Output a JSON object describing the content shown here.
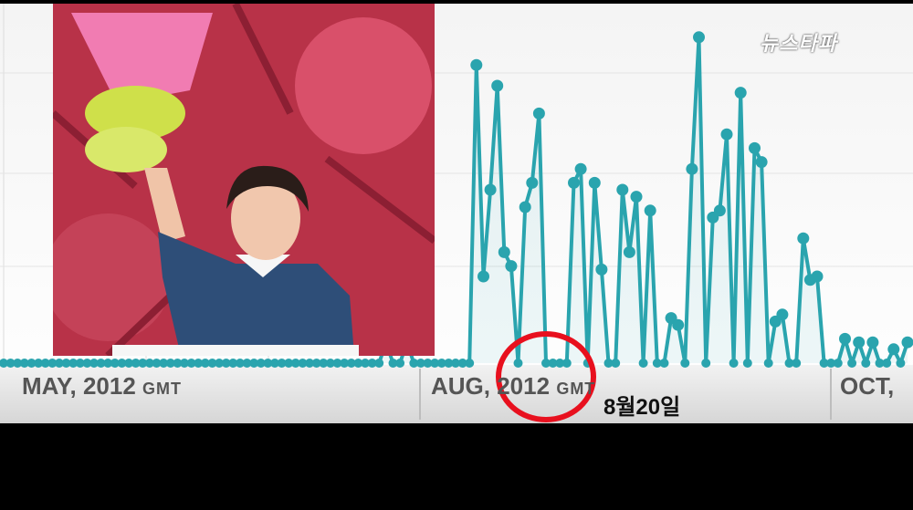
{
  "logo": {
    "text": "뉴스타파"
  },
  "annotation": {
    "text": "8월20일"
  },
  "chart_data": {
    "type": "line",
    "x_ticks": [
      {
        "main": "MAY, 2012",
        "suffix": "GMT"
      },
      {
        "main": "AUG, 2012",
        "suffix": "GMT"
      },
      {
        "main": "OCT,",
        "suffix": ""
      }
    ],
    "highlight": {
      "x_label": "8월20일",
      "color": "#e8101e"
    },
    "series_color": "#2aa4ae",
    "ylim": [
      0,
      100
    ],
    "grid": true,
    "values": [
      0,
      0,
      0,
      0,
      0,
      0,
      0,
      0,
      0,
      0,
      0,
      0,
      0,
      0,
      0,
      0,
      0,
      0,
      0,
      0,
      0,
      0,
      0,
      0,
      0,
      0,
      0,
      0,
      0,
      0,
      0,
      0,
      0,
      0,
      0,
      0,
      0,
      0,
      0,
      0,
      0,
      0,
      0,
      0,
      0,
      0,
      0,
      0,
      0,
      0,
      0,
      0,
      0,
      0,
      0,
      6,
      0,
      0,
      6,
      0,
      0,
      0,
      0,
      0,
      0,
      0,
      0,
      0,
      86,
      25,
      50,
      80,
      32,
      28,
      0,
      45,
      52,
      72,
      0,
      0,
      0,
      0,
      52,
      56,
      0,
      52,
      27,
      0,
      0,
      50,
      32,
      48,
      0,
      44,
      0,
      0,
      13,
      11,
      0,
      56,
      94,
      0,
      42,
      44,
      66,
      0,
      78,
      0,
      62,
      58,
      0,
      12,
      14,
      0,
      0,
      36,
      24,
      25,
      0,
      0,
      0,
      7,
      0,
      6,
      0,
      6,
      0,
      0,
      4,
      0,
      6
    ]
  }
}
